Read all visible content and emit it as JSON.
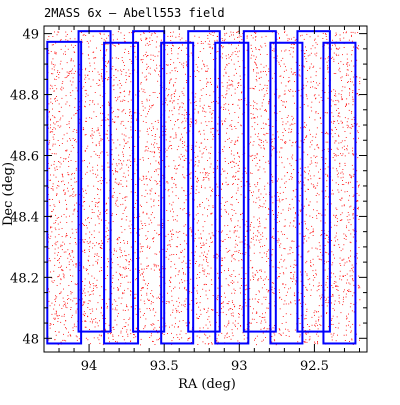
{
  "chart_data": {
    "type": "scatter",
    "title": "2MASS 6x – Abell553 field",
    "xlabel": "RA (deg)",
    "ylabel": "Dec (deg)",
    "xlim": [
      94.3,
      92.15
    ],
    "ylim": [
      47.955,
      49.025
    ],
    "x_reversed": true,
    "xticks": [
      94,
      93.5,
      93,
      92.5
    ],
    "xtick_labels": [
      "94",
      "93.5",
      "93",
      "92.5"
    ],
    "yticks": [
      48,
      48.2,
      48.4,
      48.6,
      48.8,
      49
    ],
    "ytick_labels": [
      "48",
      "48.2",
      "48.4",
      "48.6",
      "48.8",
      "49"
    ],
    "grid": false,
    "colors": {
      "points": "#ff0000",
      "scans": "#0000ff",
      "frame": "#000000"
    },
    "scatter_series": {
      "name": "sources",
      "ra_range": [
        94.28,
        92.2
      ],
      "dec_range": [
        47.98,
        49.01
      ],
      "density": "uniform"
    },
    "scan_strips": [
      {
        "ra_min": 94.053,
        "ra_max": 94.278,
        "dec_min": 47.983,
        "dec_max": 48.973
      },
      {
        "ra_min": 93.857,
        "ra_max": 94.07,
        "dec_min": 48.022,
        "dec_max": 49.008
      },
      {
        "ra_min": 93.674,
        "ra_max": 93.9,
        "dec_min": 47.983,
        "dec_max": 48.97
      },
      {
        "ra_min": 93.5,
        "ra_max": 93.707,
        "dec_min": 48.022,
        "dec_max": 49.008
      },
      {
        "ra_min": 93.307,
        "ra_max": 93.52,
        "dec_min": 47.983,
        "dec_max": 48.97
      },
      {
        "ra_min": 93.13,
        "ra_max": 93.34,
        "dec_min": 48.022,
        "dec_max": 49.008
      },
      {
        "ra_min": 92.94,
        "ra_max": 93.16,
        "dec_min": 47.983,
        "dec_max": 48.97
      },
      {
        "ra_min": 92.757,
        "ra_max": 92.97,
        "dec_min": 48.022,
        "dec_max": 49.008
      },
      {
        "ra_min": 92.58,
        "ra_max": 92.793,
        "dec_min": 47.983,
        "dec_max": 48.97
      },
      {
        "ra_min": 92.397,
        "ra_max": 92.613,
        "dec_min": 48.022,
        "dec_max": 49.008
      },
      {
        "ra_min": 92.227,
        "ra_max": 92.44,
        "dec_min": 47.983,
        "dec_max": 48.97
      }
    ]
  }
}
